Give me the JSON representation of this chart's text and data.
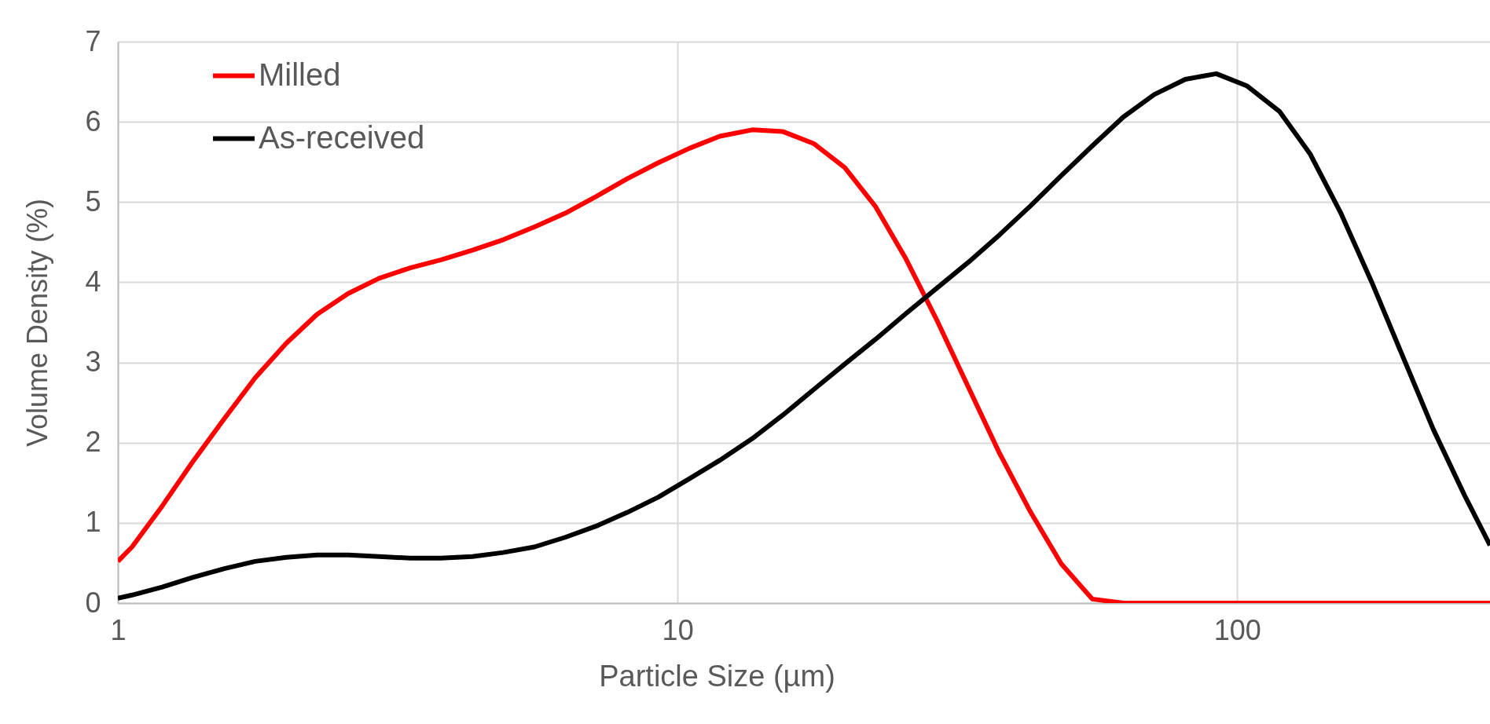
{
  "chart_data": {
    "type": "line",
    "xlabel": "Particle Size (µm)",
    "ylabel": "Volume Density (%)",
    "x": [
      1,
      1.06,
      1.2,
      1.36,
      1.55,
      1.76,
      2.0,
      2.27,
      2.58,
      2.93,
      3.33,
      3.78,
      4.3,
      4.88,
      5.55,
      6.3,
      7.16,
      8.13,
      9.24,
      10.5,
      11.9,
      13.6,
      15.4,
      17.5,
      19.9,
      22.6,
      25.6,
      29.1,
      33.1,
      37.6,
      42.7,
      48.5,
      55.1,
      62.6,
      71.1,
      80.8,
      91.8,
      104,
      119,
      135,
      153,
      174,
      197,
      224,
      255,
      283
    ],
    "series": [
      {
        "name": "Milled",
        "color": "#ff0000",
        "values": [
          0.52,
          0.7,
          1.21,
          1.76,
          2.3,
          2.81,
          3.24,
          3.6,
          3.86,
          4.05,
          4.18,
          4.28,
          4.4,
          4.53,
          4.69,
          4.86,
          5.07,
          5.29,
          5.49,
          5.67,
          5.82,
          5.9,
          5.88,
          5.73,
          5.43,
          4.94,
          4.29,
          3.52,
          2.69,
          1.87,
          1.14,
          0.49,
          0.05,
          0,
          0,
          0,
          0,
          0,
          0,
          0,
          0,
          0,
          0,
          0,
          0,
          0
        ]
      },
      {
        "name": "As-received",
        "color": "#000000",
        "values": [
          0.06,
          0.1,
          0.2,
          0.32,
          0.43,
          0.52,
          0.57,
          0.6,
          0.6,
          0.58,
          0.56,
          0.56,
          0.58,
          0.63,
          0.7,
          0.82,
          0.96,
          1.13,
          1.32,
          1.55,
          1.78,
          2.05,
          2.34,
          2.66,
          2.98,
          3.29,
          3.61,
          3.93,
          4.25,
          4.59,
          4.95,
          5.33,
          5.7,
          6.06,
          6.34,
          6.53,
          6.6,
          6.45,
          6.13,
          5.6,
          4.87,
          4.0,
          3.1,
          2.17,
          1.34,
          0.72
        ]
      }
    ],
    "xlim": [
      1,
      283
    ],
    "xticks": [
      1,
      10,
      100
    ],
    "ylim": [
      0,
      7
    ],
    "yticks": [
      0,
      1,
      2,
      3,
      4,
      5,
      6,
      7
    ],
    "log": "x",
    "grid": true,
    "legend": "top left",
    "marker": "none",
    "line_style": "solid"
  }
}
